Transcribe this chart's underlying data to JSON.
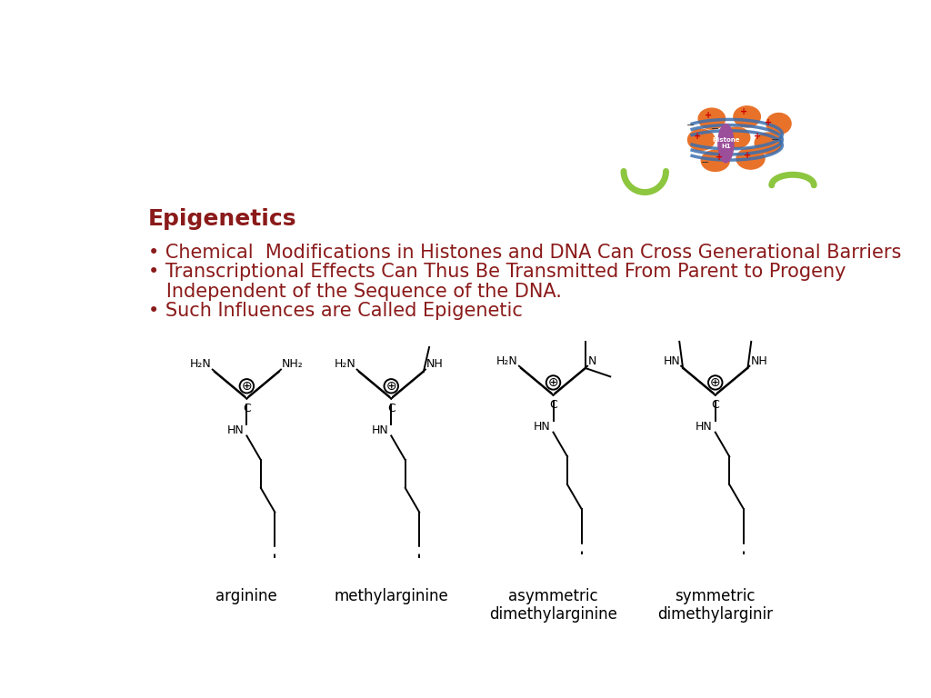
{
  "bg_color": "#ffffff",
  "title": "Epigenetics",
  "title_color": "#8B1A1A",
  "title_fontsize": 18,
  "bullet_color": "#8B1A1A",
  "bullet_fontsize": 15,
  "bullet1": "Chemical  Modifications in Histones and DNA Can Cross Generational Barriers",
  "bullet2": "Transcriptional Effects Can Thus Be Transmitted From Parent to Progeny",
  "bullet2b": "   Independent of the Sequence of the DNA.",
  "bullet3": "Such Influences are Called Epigenetic",
  "compound_labels": [
    "arginine",
    "methylarginine",
    "asymmetric\ndimethylarginine",
    "symmetric\ndimethylarginir"
  ],
  "label_color": "#000000",
  "struct_color": "#000000",
  "struct_lw": 1.4,
  "struct_fontsize": 9
}
